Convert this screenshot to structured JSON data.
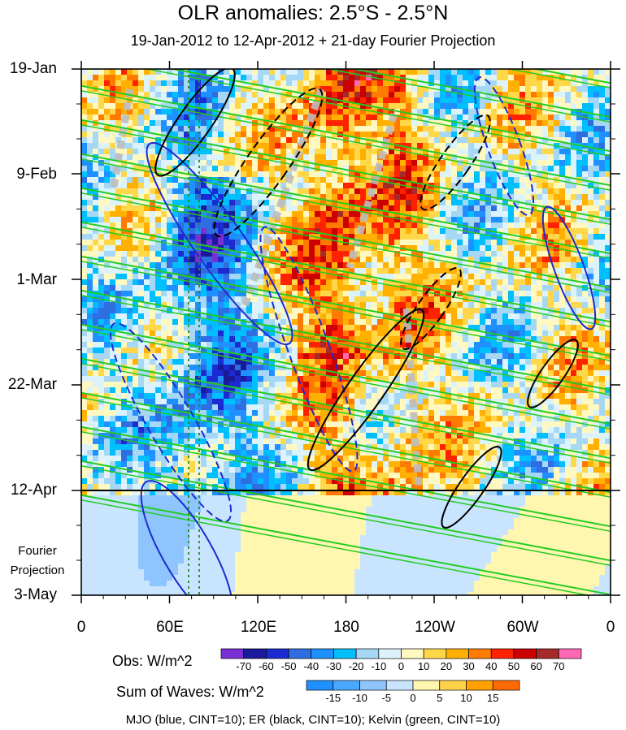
{
  "chart_data": {
    "type": "heatmap",
    "title": "OLR anomalies: 2.5°S - 2.5°N",
    "subtitle": "19-Jan-2012 to 12-Apr-2012 + 21-day Fourier Projection",
    "x_tick_labels": [
      "0",
      "60E",
      "120E",
      "180",
      "120W",
      "60W",
      "0"
    ],
    "x_range": [
      0,
      360
    ],
    "y_tick_labels": [
      "19-Jan",
      "9-Feb",
      "1-Mar",
      "22-Mar",
      "12-Apr",
      "3-May"
    ],
    "projection_label_line1": "Fourier",
    "projection_label_line2": "Projection",
    "observation_end_line": "12-Apr",
    "obs_colorbar": {
      "label": "Obs: W/m^2",
      "levels": [
        "-70",
        "-60",
        "-50",
        "-40",
        "-30",
        "-20",
        "-10",
        "0",
        "10",
        "20",
        "30",
        "40",
        "50",
        "60",
        "70"
      ],
      "colors": [
        "#7a2fd6",
        "#1a1a9a",
        "#1b2bd1",
        "#2e6ee0",
        "#1e90ff",
        "#00bfff",
        "#a6d8f5",
        "#ddf3fb",
        "#fff8c0",
        "#ffd84a",
        "#ffb000",
        "#ff7a00",
        "#ff2200",
        "#cc0000",
        "#a52a2a",
        "#ff69b4"
      ]
    },
    "waves_colorbar": {
      "label": "Sum of Waves: W/m^2",
      "levels": [
        "-15",
        "-10",
        "-5",
        "0",
        "5",
        "10",
        "15"
      ],
      "colors": [
        "#1e90ff",
        "#4aa8ff",
        "#8ec5ff",
        "#c9e4ff",
        "#fff6b0",
        "#ffd24a",
        "#ffa000",
        "#ff6a00"
      ]
    },
    "contours_legend": "MJO (blue, CINT=10); ER (black, CINT=10); Kelvin (green, CINT=10)",
    "series_colors": {
      "MJO": "#1b2bd1",
      "ER": "#000000",
      "Kelvin": "#22cc22"
    }
  }
}
